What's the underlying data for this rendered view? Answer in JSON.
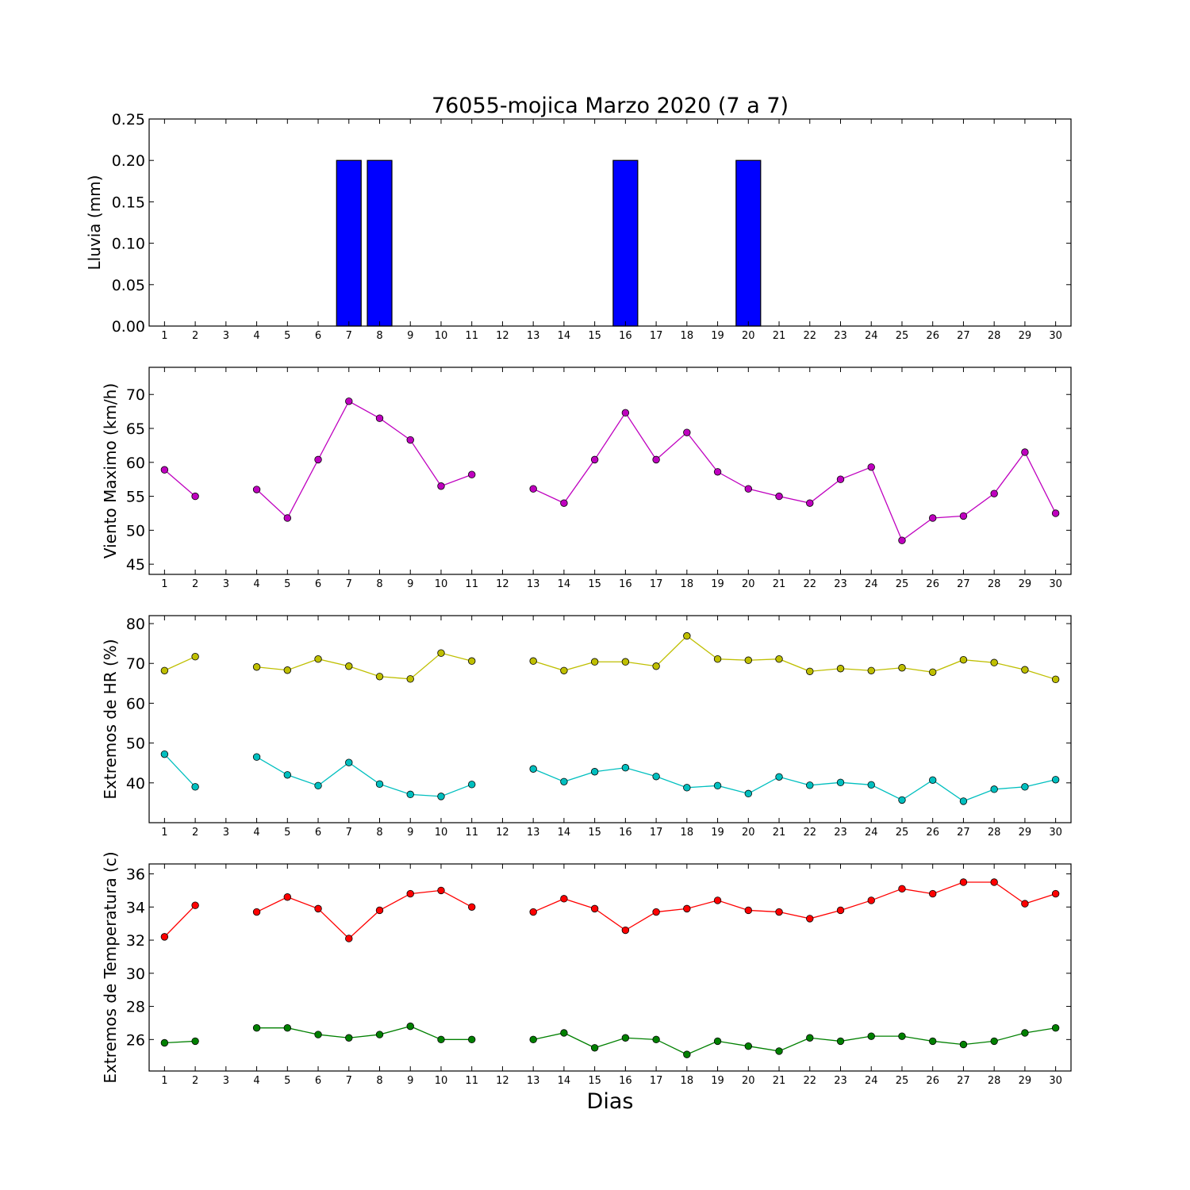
{
  "chart_data": {
    "title": "76055-mojica Marzo 2020  (7 a 7)",
    "xlabel": "Dias",
    "x_ticks": [
      "1",
      "2",
      "3",
      "4",
      "5",
      "6",
      "7",
      "8",
      "9",
      "10",
      "11",
      "12",
      "13",
      "14",
      "15",
      "16",
      "17",
      "18",
      "19",
      "20",
      "21",
      "22",
      "23",
      "24",
      "25",
      "26",
      "27",
      "28",
      "29",
      "30"
    ],
    "panels": [
      {
        "type": "bar",
        "ylabel": "Lluvia (mm)",
        "ylim": [
          0,
          0.25
        ],
        "y_ticks": [
          0,
          0.05,
          0.1,
          0.15,
          0.2,
          0.25
        ],
        "y_tick_labels": [
          "0.00",
          "0.05",
          "0.10",
          "0.15",
          "0.20",
          "0.25"
        ],
        "series": [
          {
            "color": "#0000ff",
            "values": [
              0,
              0,
              null,
              0,
              0,
              0,
              0.2,
              0.2,
              0,
              0,
              0,
              null,
              0,
              0,
              0,
              0.2,
              0,
              0,
              0,
              0.2,
              0,
              0,
              0,
              0,
              0,
              0,
              0,
              0,
              0,
              0
            ]
          }
        ]
      },
      {
        "type": "line",
        "ylabel": "Viento Maximo (km/h)",
        "ylim": [
          43.5,
          74
        ],
        "y_ticks": [
          45,
          50,
          55,
          60,
          65,
          70
        ],
        "y_tick_labels": [
          "45",
          "50",
          "55",
          "60",
          "65",
          "70"
        ],
        "series": [
          {
            "color": "#bf00bf",
            "values": [
              58.9,
              55.0,
              null,
              56.0,
              51.8,
              60.4,
              69.0,
              66.5,
              63.3,
              56.5,
              58.2,
              null,
              56.1,
              54.0,
              60.4,
              67.3,
              60.4,
              64.4,
              58.6,
              56.1,
              55.0,
              54.0,
              57.5,
              59.3,
              48.5,
              51.8,
              52.1,
              55.4,
              61.5,
              52.5
            ]
          }
        ]
      },
      {
        "type": "line",
        "ylabel": "Extremos de HR (%)",
        "ylim": [
          30,
          82
        ],
        "y_ticks": [
          40,
          50,
          60,
          70,
          80
        ],
        "y_tick_labels": [
          "40",
          "50",
          "60",
          "70",
          "80"
        ],
        "series": [
          {
            "color": "#bfbf00",
            "values": [
              68.2,
              71.7,
              null,
              69.1,
              68.3,
              71.1,
              69.3,
              66.7,
              66.1,
              72.6,
              70.6,
              null,
              70.6,
              68.2,
              70.4,
              70.4,
              69.3,
              76.9,
              71.1,
              70.8,
              71.1,
              68.0,
              68.7,
              68.2,
              68.9,
              67.8,
              70.9,
              70.2,
              68.4,
              66.0
            ]
          },
          {
            "color": "#00bfbf",
            "values": [
              47.2,
              39.0,
              null,
              46.5,
              42.0,
              39.3,
              45.1,
              39.7,
              37.1,
              36.6,
              39.6,
              null,
              43.5,
              40.3,
              42.8,
              43.8,
              41.6,
              38.8,
              39.3,
              37.3,
              41.5,
              39.4,
              40.1,
              39.5,
              35.7,
              40.7,
              35.4,
              38.4,
              39.0,
              40.8
            ]
          }
        ]
      },
      {
        "type": "line",
        "ylabel": "Extremos de Temperatura (c)",
        "ylim": [
          24.1,
          36.6
        ],
        "y_ticks": [
          26,
          28,
          30,
          32,
          34,
          36
        ],
        "y_tick_labels": [
          "26",
          "28",
          "30",
          "32",
          "34",
          "36"
        ],
        "series": [
          {
            "color": "#ff0000",
            "values": [
              32.2,
              34.1,
              null,
              33.7,
              34.6,
              33.9,
              32.1,
              33.8,
              34.8,
              35.0,
              34.0,
              null,
              33.7,
              34.5,
              33.9,
              32.6,
              33.7,
              33.9,
              34.4,
              33.8,
              33.7,
              33.3,
              33.8,
              34.4,
              35.1,
              34.8,
              35.5,
              35.5,
              34.2,
              34.8
            ]
          },
          {
            "color": "#008000",
            "values": [
              25.8,
              25.9,
              null,
              26.7,
              26.7,
              26.3,
              26.1,
              26.3,
              26.8,
              26.0,
              26.0,
              null,
              26.0,
              26.4,
              25.5,
              26.1,
              26.0,
              25.1,
              25.9,
              25.6,
              25.3,
              26.1,
              25.9,
              26.2,
              26.2,
              25.9,
              25.7,
              25.9,
              26.4,
              26.7
            ]
          }
        ]
      }
    ]
  }
}
